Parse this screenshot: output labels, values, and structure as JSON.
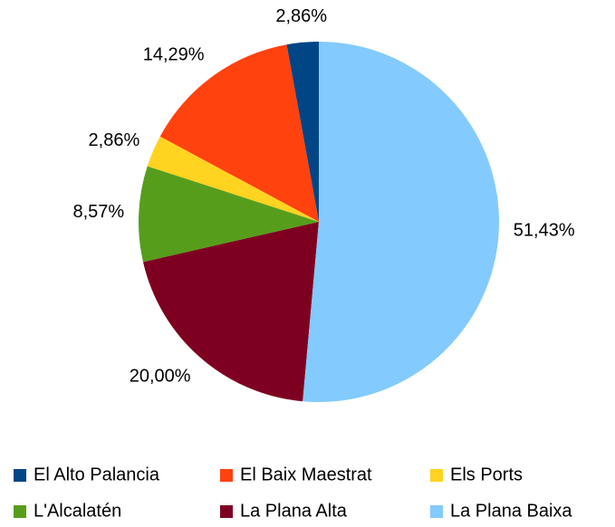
{
  "chart_data": {
    "type": "pie",
    "categories": [
      "El Alto Palancia",
      "El Baix Maestrat",
      "Els Ports",
      "L'Alcalatén",
      "La Plana Alta",
      "La Plana Baixa"
    ],
    "values": [
      2.86,
      14.29,
      2.86,
      8.57,
      20.0,
      51.43
    ],
    "value_labels": [
      "2,86%",
      "14,29%",
      "2,86%",
      "8,57%",
      "20,00%",
      "51,43%"
    ],
    "colors": [
      "#004586",
      "#ff420e",
      "#ffd320",
      "#579d1c",
      "#7e0021",
      "#83caff"
    ],
    "legend": "bottom"
  }
}
